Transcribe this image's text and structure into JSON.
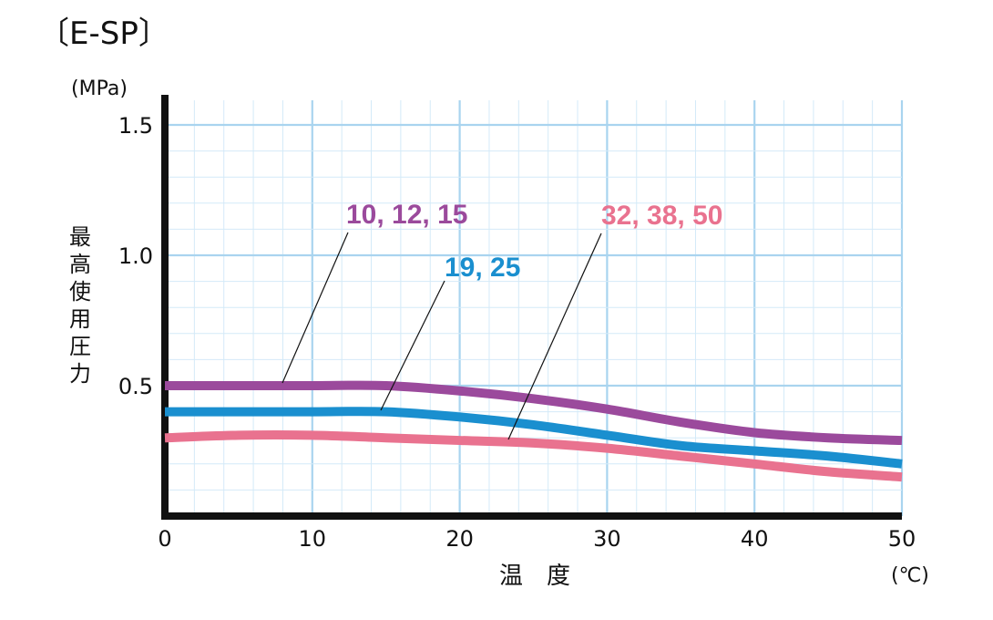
{
  "title": "〔E-SP〕",
  "y_unit": "(MPa)",
  "x_unit": "(℃)",
  "ylabel": "最高使用圧力",
  "xlabel": "温　度",
  "chart_data": {
    "type": "line",
    "xlim": [
      0,
      50
    ],
    "ylim": [
      0,
      1.6
    ],
    "x_ticks": [
      "0",
      "10",
      "20",
      "30",
      "40",
      "50"
    ],
    "y_ticks": [
      "0.5",
      "1.0",
      "1.5"
    ],
    "grid": true,
    "series": [
      {
        "name": "10, 12, 15",
        "color": "#9b4a9c",
        "points": [
          [
            0,
            0.5
          ],
          [
            5,
            0.5
          ],
          [
            10,
            0.5
          ],
          [
            15,
            0.5
          ],
          [
            20,
            0.48
          ],
          [
            25,
            0.45
          ],
          [
            30,
            0.41
          ],
          [
            35,
            0.36
          ],
          [
            40,
            0.32
          ],
          [
            45,
            0.3
          ],
          [
            50,
            0.29
          ]
        ]
      },
      {
        "name": "19, 25",
        "color": "#1a8fcf",
        "points": [
          [
            0,
            0.4
          ],
          [
            5,
            0.4
          ],
          [
            10,
            0.4
          ],
          [
            15,
            0.4
          ],
          [
            20,
            0.38
          ],
          [
            25,
            0.35
          ],
          [
            30,
            0.31
          ],
          [
            35,
            0.27
          ],
          [
            40,
            0.25
          ],
          [
            45,
            0.23
          ],
          [
            50,
            0.2
          ]
        ]
      },
      {
        "name": "32, 38, 50",
        "color": "#e9728f",
        "points": [
          [
            0,
            0.3
          ],
          [
            5,
            0.31
          ],
          [
            10,
            0.31
          ],
          [
            15,
            0.3
          ],
          [
            20,
            0.29
          ],
          [
            25,
            0.28
          ],
          [
            30,
            0.26
          ],
          [
            35,
            0.23
          ],
          [
            40,
            0.2
          ],
          [
            45,
            0.17
          ],
          [
            50,
            0.15
          ]
        ]
      }
    ]
  }
}
